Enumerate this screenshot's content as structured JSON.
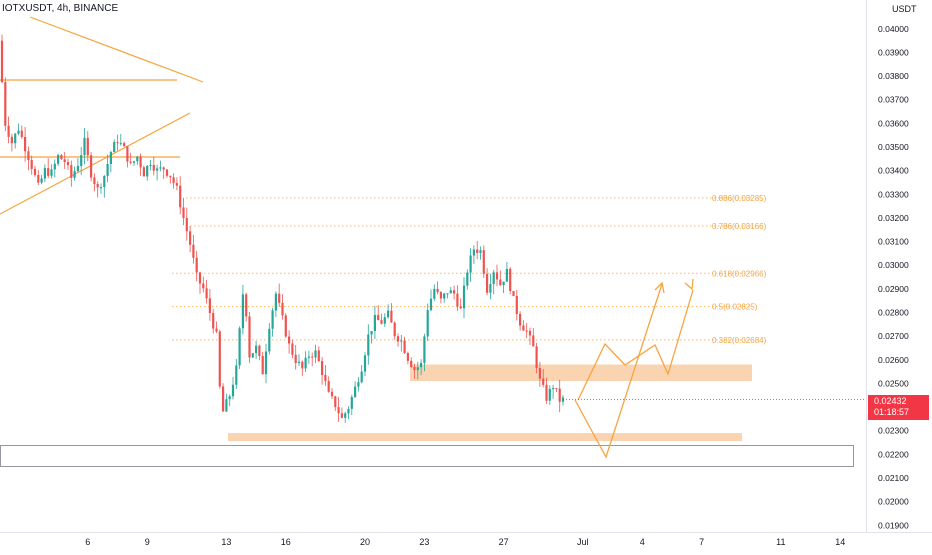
{
  "header": {
    "symbol_label": "IOTXUSDT, 4h, BINANCE",
    "currency": "USDT"
  },
  "last_price": {
    "price": "0.02432",
    "countdown": "01:18:57",
    "color": "#f23645"
  },
  "colors": {
    "up": "#26a69a",
    "down": "#ef5350",
    "drawing": "#f7a440",
    "zone": "#f9cda3"
  },
  "chart_data": {
    "type": "candlestick",
    "x_axis": {
      "ticks": [
        {
          "label": "6",
          "t": 26
        },
        {
          "label": "9",
          "t": 44
        },
        {
          "label": "13",
          "t": 68
        },
        {
          "label": "16",
          "t": 86
        },
        {
          "label": "20",
          "t": 110
        },
        {
          "label": "23",
          "t": 128
        },
        {
          "label": "27",
          "t": 152
        },
        {
          "label": "Jul",
          "t": 176
        },
        {
          "label": "4",
          "t": 194
        },
        {
          "label": "7",
          "t": 212
        },
        {
          "label": "11",
          "t": 236
        },
        {
          "label": "14",
          "t": 254
        }
      ]
    },
    "y_axis": {
      "min": 0.0188,
      "max": 0.0405,
      "ticks": [
        "0.04000",
        "0.03900",
        "0.03800",
        "0.03700",
        "0.03600",
        "0.03500",
        "0.03400",
        "0.03300",
        "0.03200",
        "0.03100",
        "0.03000",
        "0.02900",
        "0.02800",
        "0.02700",
        "0.02600",
        "0.02500",
        "0.02400",
        "0.02300",
        "0.02200",
        "0.02100",
        "0.02000",
        "0.01900"
      ]
    },
    "price_anchors": [
      [
        0,
        0.0395
      ],
      [
        2,
        0.036
      ],
      [
        4,
        0.0352
      ],
      [
        6,
        0.0358
      ],
      [
        8,
        0.035
      ],
      [
        10,
        0.0342
      ],
      [
        12,
        0.0333
      ],
      [
        14,
        0.034
      ],
      [
        16,
        0.0339
      ],
      [
        18,
        0.0346
      ],
      [
        20,
        0.0344
      ],
      [
        22,
        0.0337
      ],
      [
        24,
        0.0343
      ],
      [
        26,
        0.0352
      ],
      [
        28,
        0.0339
      ],
      [
        30,
        0.0332
      ],
      [
        32,
        0.0338
      ],
      [
        34,
        0.0348
      ],
      [
        36,
        0.0353
      ],
      [
        38,
        0.0349
      ],
      [
        40,
        0.0342
      ],
      [
        42,
        0.0346
      ],
      [
        44,
        0.0339
      ],
      [
        46,
        0.0344
      ],
      [
        48,
        0.034
      ],
      [
        50,
        0.0341
      ],
      [
        52,
        0.0338
      ],
      [
        54,
        0.0332
      ],
      [
        56,
        0.032
      ],
      [
        58,
        0.0309
      ],
      [
        60,
        0.0295
      ],
      [
        62,
        0.029
      ],
      [
        64,
        0.028
      ],
      [
        66,
        0.027
      ],
      [
        67,
        0.0248
      ],
      [
        68,
        0.0238
      ],
      [
        70,
        0.0245
      ],
      [
        72,
        0.0256
      ],
      [
        74,
        0.0288
      ],
      [
        75,
        0.028
      ],
      [
        76,
        0.0262
      ],
      [
        78,
        0.0265
      ],
      [
        80,
        0.0255
      ],
      [
        82,
        0.0275
      ],
      [
        84,
        0.0288
      ],
      [
        86,
        0.0277
      ],
      [
        88,
        0.0266
      ],
      [
        90,
        0.026
      ],
      [
        92,
        0.0256
      ],
      [
        94,
        0.0262
      ],
      [
        96,
        0.0263
      ],
      [
        98,
        0.0255
      ],
      [
        100,
        0.0245
      ],
      [
        102,
        0.0241
      ],
      [
        104,
        0.0235
      ],
      [
        106,
        0.024
      ],
      [
        108,
        0.0248
      ],
      [
        110,
        0.0257
      ],
      [
        112,
        0.027
      ],
      [
        114,
        0.0277
      ],
      [
        116,
        0.0276
      ],
      [
        118,
        0.0279
      ],
      [
        120,
        0.0271
      ],
      [
        122,
        0.0268
      ],
      [
        124,
        0.0261
      ],
      [
        126,
        0.0256
      ],
      [
        128,
        0.0258
      ],
      [
        130,
        0.0282
      ],
      [
        132,
        0.029
      ],
      [
        134,
        0.0285
      ],
      [
        136,
        0.0289
      ],
      [
        138,
        0.0288
      ],
      [
        140,
        0.0281
      ],
      [
        142,
        0.0298
      ],
      [
        144,
        0.0307
      ],
      [
        146,
        0.0306
      ],
      [
        148,
        0.029
      ],
      [
        150,
        0.0298
      ],
      [
        152,
        0.0292
      ],
      [
        154,
        0.0297
      ],
      [
        156,
        0.0285
      ],
      [
        158,
        0.0276
      ],
      [
        160,
        0.0272
      ],
      [
        162,
        0.0265
      ],
      [
        164,
        0.0251
      ],
      [
        166,
        0.0244
      ],
      [
        168,
        0.0249
      ],
      [
        170,
        0.0243
      ]
    ],
    "fibonacci_levels": [
      {
        "label": "0.886(0.03285)",
        "value": 0.03285
      },
      {
        "label": "0.786(0.03166)",
        "value": 0.03166
      },
      {
        "label": "0.618(0.02966)",
        "value": 0.02966
      },
      {
        "label": "0.5(0.02825)",
        "value": 0.02825
      },
      {
        "label": "0.382(0.02684)",
        "value": 0.02684
      }
    ],
    "zones": [
      {
        "name": "resistance-zone",
        "from": 0.0251,
        "to": 0.0258
      },
      {
        "name": "support-zone",
        "from": 0.0227,
        "to": 0.0229
      }
    ],
    "grid": false
  }
}
